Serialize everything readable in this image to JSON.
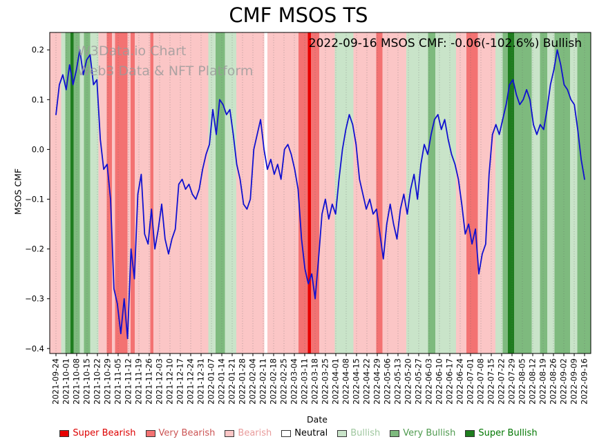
{
  "chart": {
    "title": "CMF MSOS TS",
    "annotation": "2022-09-16 MSOS CMF: -0.06(-102.6%) Bullish",
    "watermark_line1": "W3Data.io Chart",
    "watermark_line2": "Web3 Data & NFT Platform",
    "xlabel": "Date",
    "ylabel": "MSOS CMF"
  },
  "chart_data": {
    "type": "line",
    "title": "CMF MSOS TS",
    "xlabel": "Date",
    "ylabel": "MSOS CMF",
    "ylim": [
      -0.41,
      0.235
    ],
    "yticks": [
      0.2,
      0.1,
      0.0,
      -0.1,
      -0.2,
      -0.3,
      -0.4
    ],
    "grid": "vertical-dotted",
    "legend_position": "bottom",
    "line_color": "#1010d0",
    "x_tick_labels": [
      "2021-09-24",
      "2021-10-01",
      "2021-10-08",
      "2021-10-15",
      "2021-10-22",
      "2021-10-29",
      "2021-11-05",
      "2021-11-12",
      "2021-11-19",
      "2021-11-26",
      "2021-12-03",
      "2021-12-10",
      "2021-12-17",
      "2021-12-24",
      "2021-12-31",
      "2022-01-07",
      "2022-01-14",
      "2022-01-21",
      "2022-01-28",
      "2022-02-04",
      "2022-02-11",
      "2022-02-18",
      "2022-02-25",
      "2022-03-04",
      "2022-03-11",
      "2022-03-18",
      "2022-03-25",
      "2022-04-01",
      "2022-04-08",
      "2022-04-15",
      "2022-04-22",
      "2022-04-29",
      "2022-05-06",
      "2022-05-13",
      "2022-05-20",
      "2022-05-27",
      "2022-06-03",
      "2022-06-10",
      "2022-06-17",
      "2022-06-24",
      "2022-07-01",
      "2022-07-08",
      "2022-07-15",
      "2022-07-22",
      "2022-07-29",
      "2022-08-05",
      "2022-08-12",
      "2022-08-19",
      "2022-08-26",
      "2022-09-02",
      "2022-09-09",
      "2022-09-16"
    ],
    "values": [
      0.07,
      0.13,
      0.15,
      0.12,
      0.17,
      0.13,
      0.16,
      0.2,
      0.15,
      0.18,
      0.19,
      0.13,
      0.14,
      0.02,
      -0.04,
      -0.03,
      -0.1,
      -0.28,
      -0.31,
      -0.37,
      -0.3,
      -0.38,
      -0.2,
      -0.26,
      -0.09,
      -0.05,
      -0.17,
      -0.19,
      -0.12,
      -0.2,
      -0.16,
      -0.11,
      -0.18,
      -0.21,
      -0.18,
      -0.16,
      -0.07,
      -0.06,
      -0.08,
      -0.07,
      -0.09,
      -0.1,
      -0.08,
      -0.04,
      -0.01,
      0.01,
      0.08,
      0.03,
      0.1,
      0.09,
      0.07,
      0.08,
      0.03,
      -0.03,
      -0.06,
      -0.11,
      -0.12,
      -0.1,
      0.0,
      0.03,
      0.06,
      0.0,
      -0.04,
      -0.02,
      -0.05,
      -0.03,
      -0.06,
      0.0,
      0.01,
      -0.01,
      -0.04,
      -0.08,
      -0.18,
      -0.24,
      -0.27,
      -0.25,
      -0.3,
      -0.22,
      -0.13,
      -0.1,
      -0.14,
      -0.11,
      -0.13,
      -0.06,
      0.0,
      0.04,
      0.07,
      0.05,
      0.01,
      -0.06,
      -0.09,
      -0.12,
      -0.1,
      -0.13,
      -0.12,
      -0.17,
      -0.22,
      -0.15,
      -0.11,
      -0.15,
      -0.18,
      -0.12,
      -0.09,
      -0.13,
      -0.08,
      -0.05,
      -0.1,
      -0.03,
      0.01,
      -0.01,
      0.03,
      0.06,
      0.07,
      0.04,
      0.06,
      0.02,
      -0.01,
      -0.03,
      -0.06,
      -0.11,
      -0.17,
      -0.15,
      -0.19,
      -0.16,
      -0.25,
      -0.21,
      -0.19,
      -0.05,
      0.03,
      0.05,
      0.03,
      0.06,
      0.09,
      0.13,
      0.14,
      0.11,
      0.09,
      0.1,
      0.12,
      0.1,
      0.05,
      0.03,
      0.05,
      0.04,
      0.08,
      0.13,
      0.16,
      0.2,
      0.17,
      0.13,
      0.12,
      0.1,
      0.09,
      0.04,
      -0.02,
      -0.06
    ],
    "band_colors": {
      "super-bearish": "#e60000",
      "very-bearish": "#f37272",
      "bearish": "#fbc6c6",
      "neutral": "#ffffff",
      "bullish": "#c9e4c9",
      "very-bullish": "#7eba7e",
      "super-bullish": "#1e7d1e"
    },
    "bands": [
      [
        -0.6,
        0.5,
        "bearish"
      ],
      [
        0.5,
        0.9,
        "bullish"
      ],
      [
        0.9,
        1.4,
        "very-bullish"
      ],
      [
        1.4,
        1.7,
        "super-bullish"
      ],
      [
        1.7,
        2.3,
        "very-bullish"
      ],
      [
        2.3,
        2.7,
        "bullish"
      ],
      [
        2.7,
        3.3,
        "very-bullish"
      ],
      [
        3.3,
        4.1,
        "bullish"
      ],
      [
        4.1,
        4.9,
        "bearish"
      ],
      [
        4.9,
        5.4,
        "very-bearish"
      ],
      [
        5.4,
        5.7,
        "bearish"
      ],
      [
        5.7,
        6.9,
        "very-bearish"
      ],
      [
        6.9,
        7.2,
        "bearish"
      ],
      [
        7.2,
        7.6,
        "very-bearish"
      ],
      [
        7.6,
        9.1,
        "bearish"
      ],
      [
        9.1,
        9.4,
        "very-bearish"
      ],
      [
        9.4,
        14.7,
        "bearish"
      ],
      [
        14.7,
        15.4,
        "bullish"
      ],
      [
        15.4,
        16.3,
        "very-bullish"
      ],
      [
        16.3,
        17.4,
        "bullish"
      ],
      [
        17.4,
        20.1,
        "bearish"
      ],
      [
        20.1,
        20.4,
        "neutral"
      ],
      [
        20.4,
        23.4,
        "bearish"
      ],
      [
        23.4,
        24.3,
        "very-bearish"
      ],
      [
        24.3,
        24.6,
        "super-bearish"
      ],
      [
        24.6,
        25.4,
        "very-bearish"
      ],
      [
        25.4,
        26.9,
        "bearish"
      ],
      [
        26.9,
        28.7,
        "bullish"
      ],
      [
        28.7,
        30.9,
        "bearish"
      ],
      [
        30.9,
        31.5,
        "very-bearish"
      ],
      [
        31.5,
        33.8,
        "bearish"
      ],
      [
        33.8,
        35.9,
        "bullish"
      ],
      [
        35.9,
        36.6,
        "very-bullish"
      ],
      [
        36.6,
        38.6,
        "bullish"
      ],
      [
        38.6,
        39.6,
        "bearish"
      ],
      [
        39.6,
        40.7,
        "very-bearish"
      ],
      [
        40.7,
        42.4,
        "bearish"
      ],
      [
        42.4,
        43.1,
        "bullish"
      ],
      [
        43.1,
        43.6,
        "very-bullish"
      ],
      [
        43.6,
        44.2,
        "super-bullish"
      ],
      [
        44.2,
        45.9,
        "very-bullish"
      ],
      [
        45.9,
        46.7,
        "bullish"
      ],
      [
        46.7,
        47.4,
        "very-bullish"
      ],
      [
        47.4,
        48.1,
        "bullish"
      ],
      [
        48.1,
        49.6,
        "very-bullish"
      ],
      [
        49.6,
        50.3,
        "bullish"
      ],
      [
        50.3,
        51.6,
        "very-bullish"
      ]
    ]
  },
  "legend": {
    "items": [
      {
        "label": "Super Bearish",
        "color": "#e60000",
        "text_color": "#dd0000"
      },
      {
        "label": "Very Bearish",
        "color": "#f37272",
        "text_color": "#cc5555"
      },
      {
        "label": "Bearish",
        "color": "#fbc6c6",
        "text_color": "#e89b9b"
      },
      {
        "label": "Neutral",
        "color": "#ffffff",
        "text_color": "#000000"
      },
      {
        "label": "Bullish",
        "color": "#c9e4c9",
        "text_color": "#9fc79f"
      },
      {
        "label": "Very Bullish",
        "color": "#7eba7e",
        "text_color": "#4e9a4e"
      },
      {
        "label": "Super Bullish",
        "color": "#1e7d1e",
        "text_color": "#007700"
      }
    ]
  }
}
